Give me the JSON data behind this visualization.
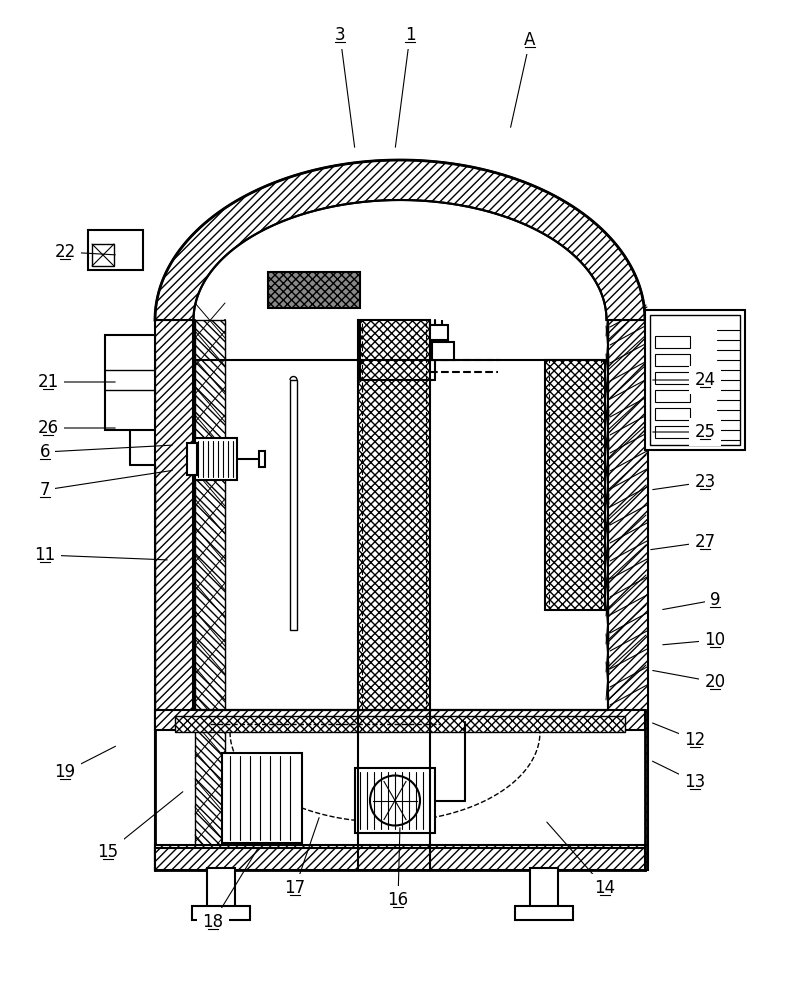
{
  "fig_width": 7.97,
  "fig_height": 10.0,
  "dpi": 100,
  "bg_color": "#ffffff",
  "line_color": "#000000",
  "label_fontsize": 12,
  "labels_info": [
    [
      "1",
      410,
      965,
      395,
      850
    ],
    [
      "3",
      340,
      965,
      355,
      850
    ],
    [
      "A",
      530,
      960,
      510,
      870
    ],
    [
      "6",
      45,
      548,
      175,
      555
    ],
    [
      "7",
      45,
      510,
      175,
      530
    ],
    [
      "9",
      715,
      400,
      660,
      390
    ],
    [
      "10",
      715,
      360,
      660,
      355
    ],
    [
      "11",
      45,
      445,
      170,
      440
    ],
    [
      "12",
      695,
      260,
      650,
      278
    ],
    [
      "13",
      695,
      218,
      650,
      240
    ],
    [
      "14",
      605,
      112,
      545,
      180
    ],
    [
      "15",
      108,
      148,
      185,
      210
    ],
    [
      "16",
      398,
      100,
      400,
      175
    ],
    [
      "17",
      295,
      112,
      320,
      185
    ],
    [
      "18",
      213,
      78,
      260,
      155
    ],
    [
      "19",
      65,
      228,
      118,
      255
    ],
    [
      "20",
      715,
      318,
      650,
      330
    ],
    [
      "21",
      48,
      618,
      118,
      618
    ],
    [
      "22",
      65,
      748,
      118,
      745
    ],
    [
      "23",
      705,
      518,
      650,
      510
    ],
    [
      "24",
      705,
      620,
      650,
      620
    ],
    [
      "25",
      705,
      568,
      650,
      568
    ],
    [
      "26",
      48,
      572,
      118,
      572
    ],
    [
      "27",
      705,
      458,
      648,
      450
    ]
  ]
}
